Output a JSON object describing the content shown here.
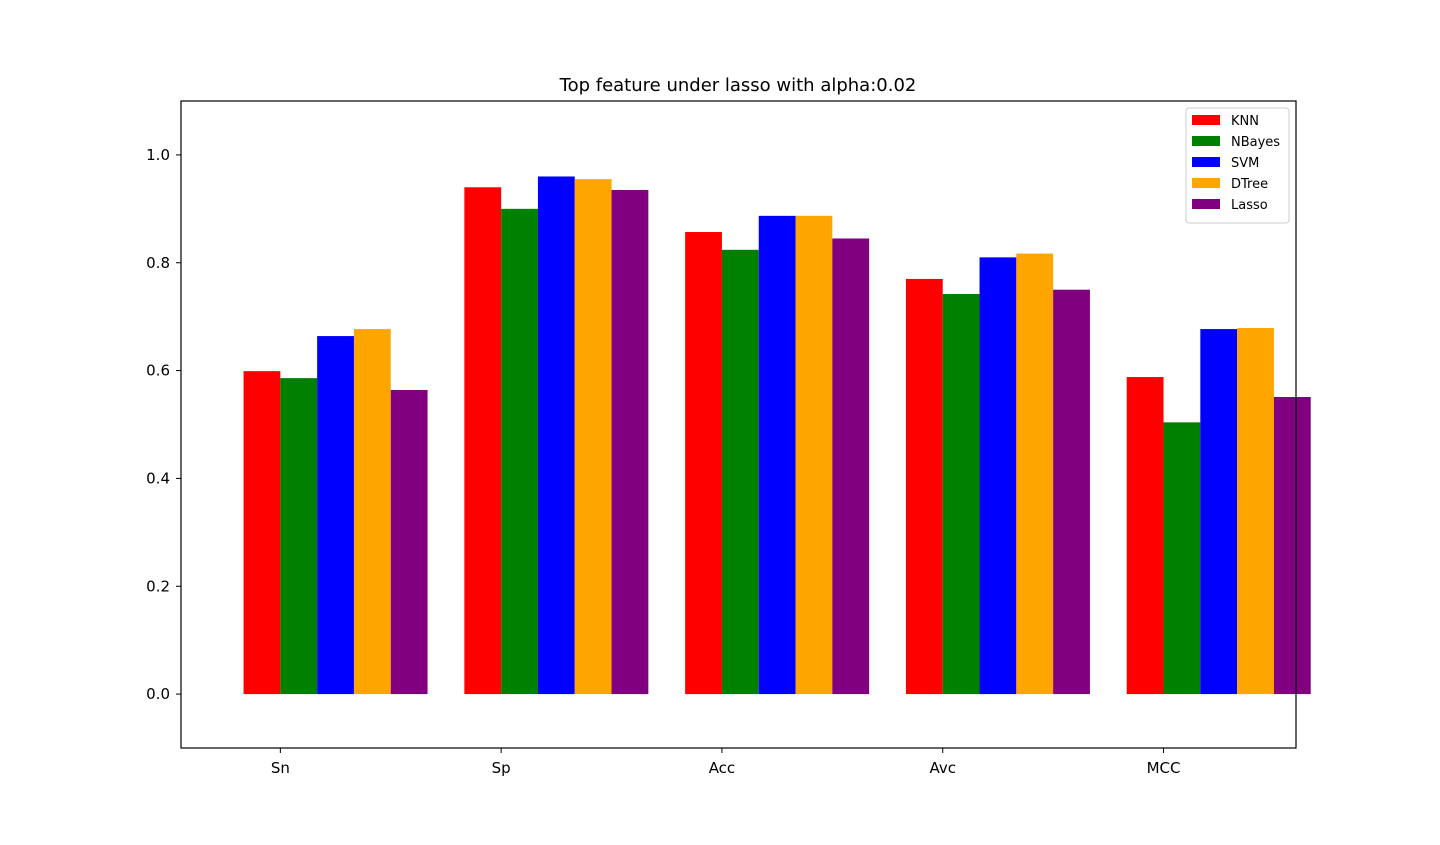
{
  "chart_data": {
    "type": "bar",
    "title": "Top feature under lasso with alpha:0.02",
    "xlabel": "",
    "ylabel": "",
    "categories": [
      "Sn",
      "Sp",
      "Acc",
      "Avc",
      "MCC"
    ],
    "ylim": [
      -0.1,
      1.1
    ],
    "yticks": [
      0.0,
      0.2,
      0.4,
      0.6,
      0.8,
      1.0
    ],
    "ytick_labels": [
      "0.0",
      "0.2",
      "0.4",
      "0.6",
      "0.8",
      "1.0"
    ],
    "grid": false,
    "legend_position": "top-right",
    "series": [
      {
        "name": "KNN",
        "color": "#ff0000",
        "values": [
          0.599,
          0.94,
          0.857,
          0.77,
          0.588
        ]
      },
      {
        "name": "NBayes",
        "color": "#008000",
        "values": [
          0.586,
          0.9,
          0.824,
          0.742,
          0.504
        ]
      },
      {
        "name": "SVM",
        "color": "#0000ff",
        "values": [
          0.664,
          0.96,
          0.887,
          0.81,
          0.677
        ]
      },
      {
        "name": "DTree",
        "color": "#ffa500",
        "values": [
          0.677,
          0.955,
          0.887,
          0.817,
          0.679
        ]
      },
      {
        "name": "Lasso",
        "color": "#800080",
        "values": [
          0.564,
          0.935,
          0.845,
          0.75,
          0.551
        ]
      }
    ]
  }
}
